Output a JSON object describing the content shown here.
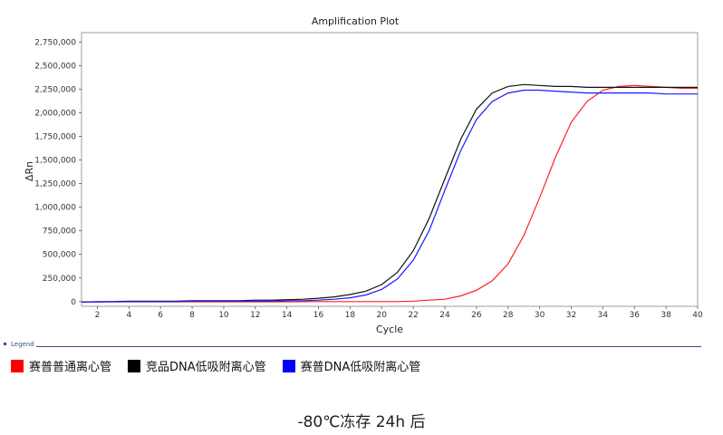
{
  "chart_data": {
    "type": "line",
    "title": "Amplification Plot",
    "xlabel": "Cycle",
    "ylabel": "ΔRn",
    "xlim": [
      1,
      40
    ],
    "ylim": [
      -50000,
      2850000
    ],
    "x_ticks": [
      2,
      4,
      6,
      8,
      10,
      12,
      14,
      16,
      18,
      20,
      22,
      24,
      26,
      28,
      30,
      32,
      34,
      36,
      38,
      40
    ],
    "y_ticks": [
      0,
      250000,
      500000,
      750000,
      1000000,
      1250000,
      1500000,
      1750000,
      2000000,
      2250000,
      2500000,
      2750000
    ],
    "y_tick_labels": [
      "0",
      "250,000",
      "500,000",
      "750,000",
      "1,000,000",
      "1,250,000",
      "1,500,000",
      "1,750,000",
      "2,000,000",
      "2,250,000",
      "2,500,000",
      "2,750,000"
    ],
    "grid": true,
    "legend_position": "bottom-left",
    "series": [
      {
        "name": "赛普普通离心管",
        "color": "#ff2020",
        "x": [
          1,
          2,
          3,
          4,
          5,
          6,
          7,
          8,
          9,
          10,
          11,
          12,
          13,
          14,
          15,
          16,
          17,
          18,
          19,
          20,
          21,
          22,
          23,
          24,
          25,
          26,
          27,
          28,
          29,
          30,
          31,
          32,
          33,
          34,
          35,
          36,
          37,
          38,
          39,
          40
        ],
        "values": [
          -5000,
          -3000,
          -2000,
          -2000,
          -2000,
          -2000,
          -2000,
          -2000,
          -2000,
          -2000,
          -2000,
          -2000,
          -2000,
          -2000,
          -1000,
          0,
          0,
          0,
          0,
          0,
          0,
          5000,
          15000,
          25000,
          60000,
          120000,
          220000,
          400000,
          700000,
          1100000,
          1530000,
          1900000,
          2120000,
          2240000,
          2280000,
          2290000,
          2280000,
          2270000,
          2260000,
          2260000
        ]
      },
      {
        "name": "竞品DNA低吸附离心管",
        "color": "#111111",
        "x": [
          1,
          2,
          3,
          4,
          5,
          6,
          7,
          8,
          9,
          10,
          11,
          12,
          13,
          14,
          15,
          16,
          17,
          18,
          19,
          20,
          21,
          22,
          23,
          24,
          25,
          26,
          27,
          28,
          29,
          30,
          31,
          32,
          33,
          34,
          35,
          36,
          37,
          38,
          39,
          40
        ],
        "values": [
          -5000,
          0,
          0,
          5000,
          5000,
          5000,
          5000,
          10000,
          10000,
          10000,
          10000,
          15000,
          15000,
          20000,
          25000,
          35000,
          50000,
          75000,
          110000,
          180000,
          310000,
          540000,
          880000,
          1300000,
          1720000,
          2040000,
          2210000,
          2280000,
          2300000,
          2290000,
          2280000,
          2280000,
          2270000,
          2270000,
          2270000,
          2270000,
          2270000,
          2270000,
          2270000,
          2270000
        ]
      },
      {
        "name": "赛普DNA低吸附离心管",
        "color": "#1a1aff",
        "x": [
          1,
          2,
          3,
          4,
          5,
          6,
          7,
          8,
          9,
          10,
          11,
          12,
          13,
          14,
          15,
          16,
          17,
          18,
          19,
          20,
          21,
          22,
          23,
          24,
          25,
          26,
          27,
          28,
          29,
          30,
          31,
          32,
          33,
          34,
          35,
          36,
          37,
          38,
          39,
          40
        ],
        "values": [
          -5000,
          -3000,
          -2000,
          0,
          0,
          0,
          0,
          5000,
          5000,
          5000,
          5000,
          5000,
          5000,
          10000,
          10000,
          15000,
          25000,
          40000,
          70000,
          130000,
          240000,
          440000,
          750000,
          1180000,
          1600000,
          1930000,
          2120000,
          2210000,
          2240000,
          2240000,
          2230000,
          2220000,
          2210000,
          2210000,
          2210000,
          2210000,
          2210000,
          2200000,
          2200000,
          2200000
        ]
      }
    ]
  },
  "legend": {
    "header": "Legend",
    "items": [
      {
        "label": "赛普普通离心管",
        "color": "#ff0000"
      },
      {
        "label": "竞品DNA低吸附离心管",
        "color": "#000000"
      },
      {
        "label": "赛普DNA低吸附离心管",
        "color": "#0000ff"
      }
    ]
  },
  "caption": "-80℃冻存 24h 后"
}
